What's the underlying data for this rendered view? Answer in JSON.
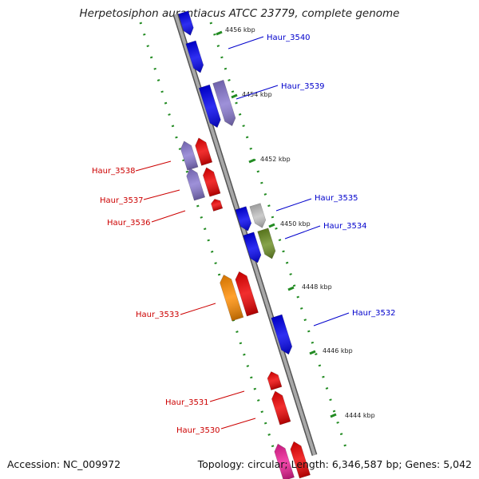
{
  "map": {
    "title": "Herpetosiphon aurantiacus ATCC 23779, complete genome",
    "accession_text": "Accession: NC_009972",
    "summary_text": "Topology: circular; Length: 6,346,587 bp; Genes: 5,042",
    "colors": {
      "backbone": "#8c8c8c",
      "tick_dash": "#228b22",
      "label_forward": "#0000cc",
      "label_reverse": "#cc0000"
    },
    "ticks": [
      {
        "label": "4456 kbp"
      },
      {
        "label": "4454 kbp"
      },
      {
        "label": "4452 kbp"
      },
      {
        "label": "4450 kbp"
      },
      {
        "label": "4448 kbp"
      },
      {
        "label": "4446 kbp"
      },
      {
        "label": "4444 kbp"
      }
    ],
    "gene_labels": [
      {
        "text": "Haur_3540",
        "strand": "forward"
      },
      {
        "text": "Haur_3539",
        "strand": "forward"
      },
      {
        "text": "Haur_3538",
        "strand": "reverse"
      },
      {
        "text": "Haur_3537",
        "strand": "reverse"
      },
      {
        "text": "Haur_3536",
        "strand": "reverse"
      },
      {
        "text": "Haur_3535",
        "strand": "forward"
      },
      {
        "text": "Haur_3534",
        "strand": "forward"
      },
      {
        "text": "Haur_3533",
        "strand": "reverse"
      },
      {
        "text": "Haur_3532",
        "strand": "forward"
      },
      {
        "text": "Haur_3531",
        "strand": "reverse"
      },
      {
        "text": "Haur_3530",
        "strand": "reverse"
      }
    ],
    "feature_colors": [
      "#0000ee",
      "#8878d0",
      "#ee0000",
      "#c0c0c0",
      "#6b8e23",
      "#ff8c00",
      "#ee1e96"
    ]
  }
}
